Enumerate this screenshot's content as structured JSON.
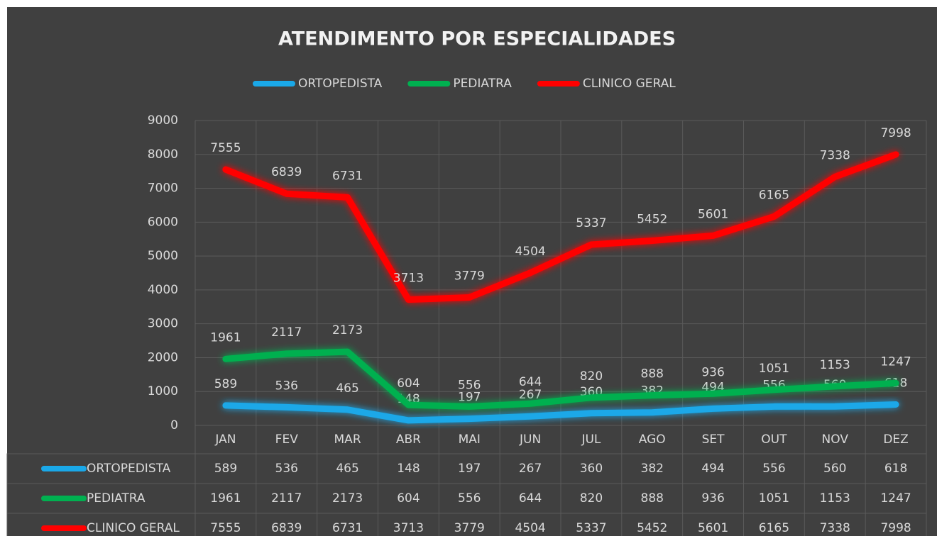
{
  "chart_data": {
    "type": "line",
    "title": "ATENDIMENTO POR ESPECIALIDADES",
    "categories": [
      "JAN",
      "FEV",
      "MAR",
      "ABR",
      "MAI",
      "JUN",
      "JUL",
      "AGO",
      "SET",
      "OUT",
      "NOV",
      "DEZ"
    ],
    "series": [
      {
        "name": "ORTOPEDISTA",
        "color": "#1aa8e8",
        "values": [
          589,
          536,
          465,
          148,
          197,
          267,
          360,
          382,
          494,
          556,
          560,
          618
        ]
      },
      {
        "name": "PEDIATRA",
        "color": "#00b050",
        "values": [
          1961,
          2117,
          2173,
          604,
          556,
          644,
          820,
          888,
          936,
          1051,
          1153,
          1247
        ]
      },
      {
        "name": "CLINICO GERAL",
        "color": "#ff0000",
        "values": [
          7555,
          6839,
          6731,
          3713,
          3779,
          4504,
          5337,
          5452,
          5601,
          6165,
          7338,
          7998
        ]
      }
    ],
    "ylim": [
      0,
      9000
    ],
    "yticks": [
      0,
      1000,
      2000,
      3000,
      4000,
      5000,
      6000,
      7000,
      8000,
      9000
    ],
    "grid": true,
    "legend": "top",
    "data_table": true
  }
}
